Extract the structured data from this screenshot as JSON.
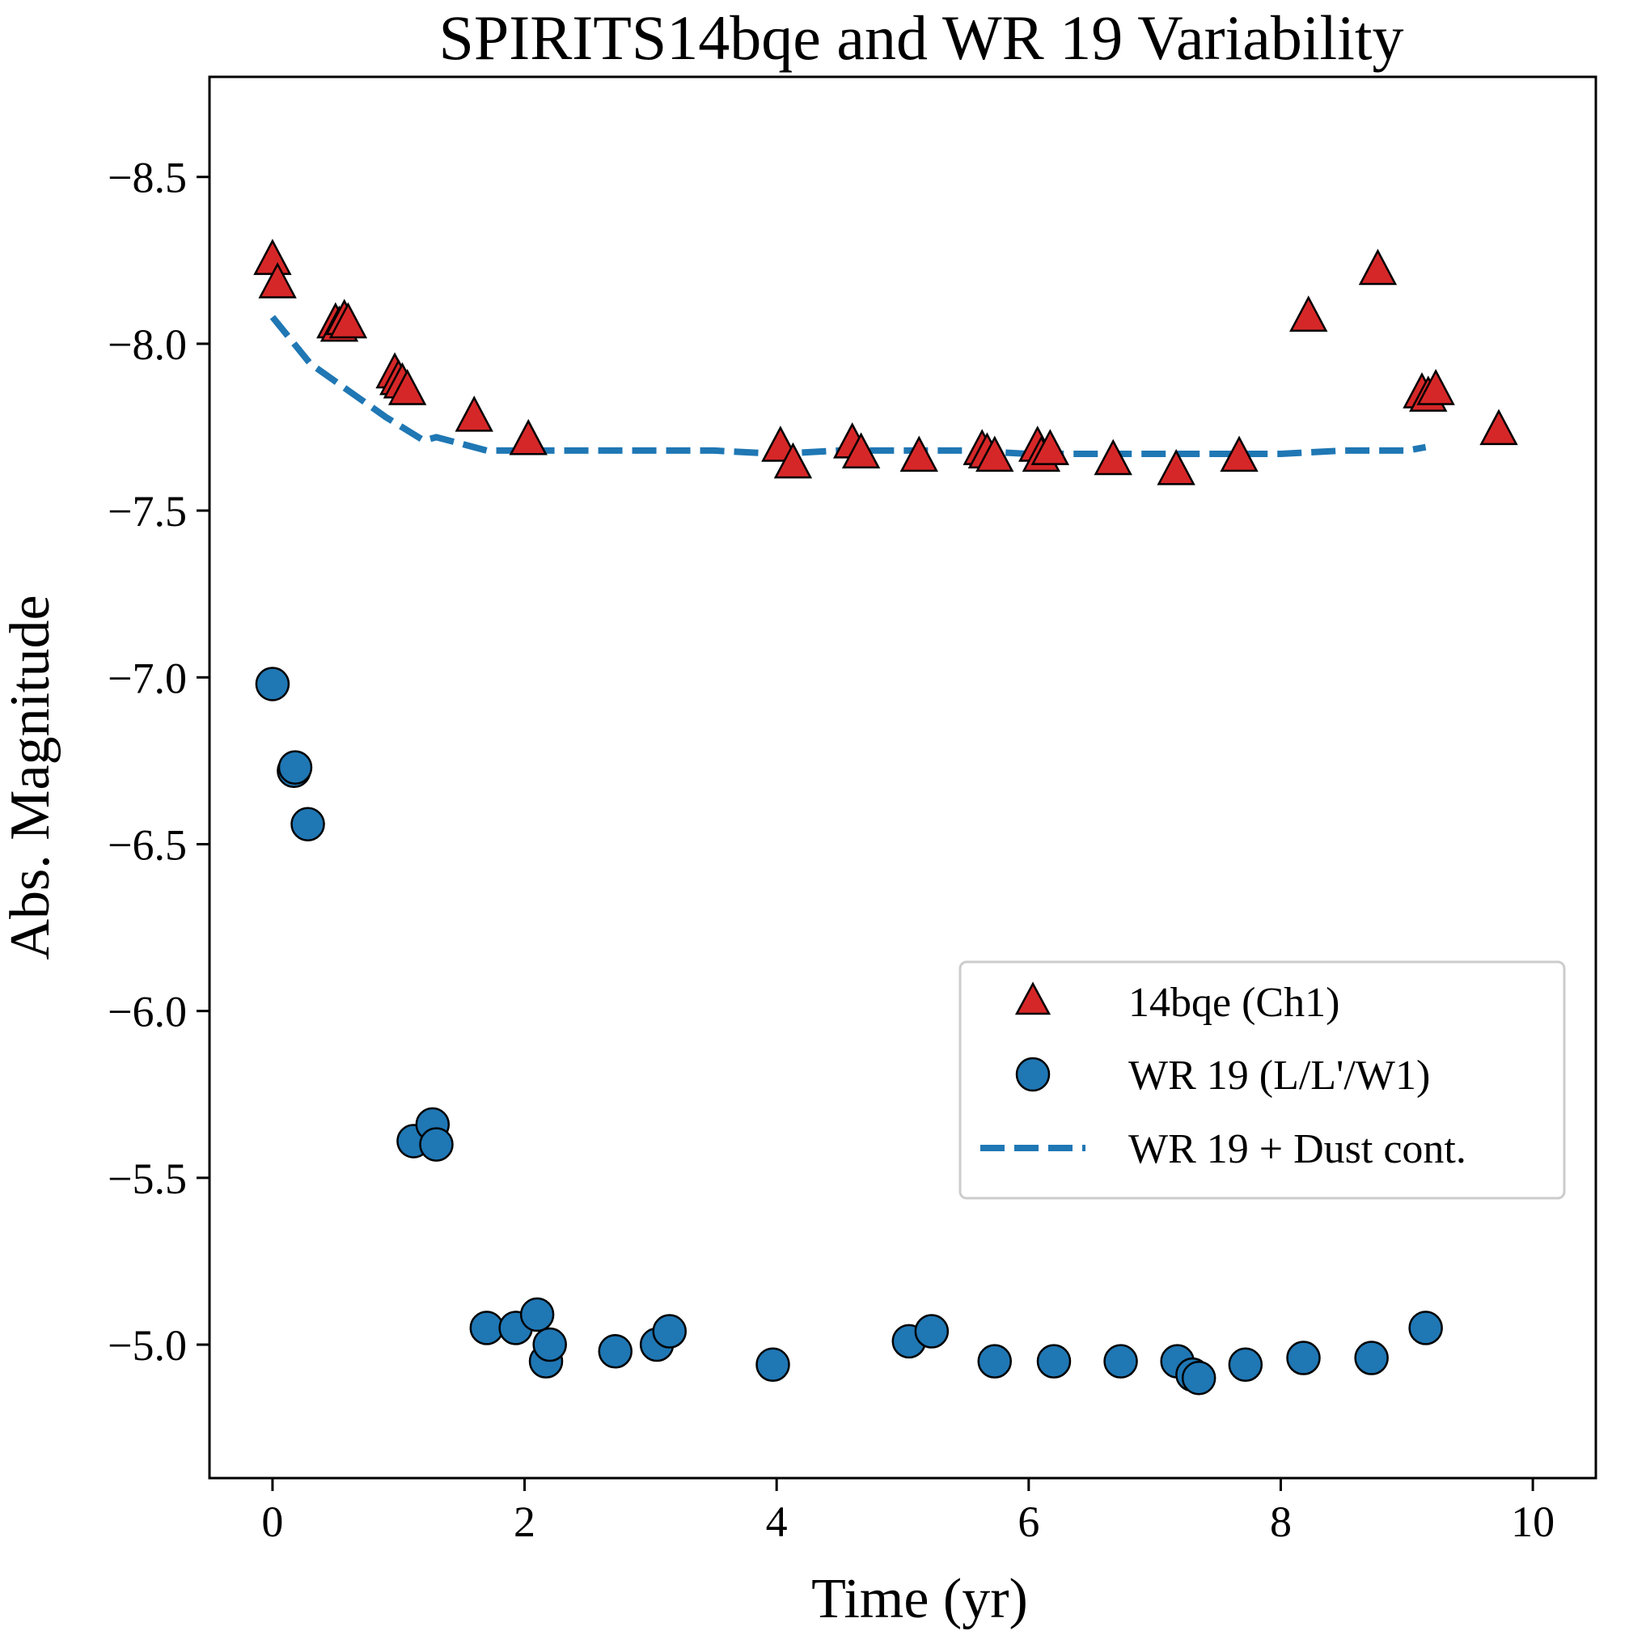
{
  "chart_data": {
    "type": "scatter",
    "title": "SPIRITS14bqe and WR 19 Variability",
    "xlabel": "Time (yr)",
    "ylabel": "Abs. Magnitude",
    "xlim": [
      -0.5,
      10.5
    ],
    "ylim": [
      -4.6,
      -8.8
    ],
    "y_axis_inverted": true,
    "x_ticks": [
      0,
      2,
      4,
      6,
      8,
      10
    ],
    "x_tick_labels": [
      "0",
      "2",
      "4",
      "6",
      "8",
      "10"
    ],
    "y_ticks": [
      -8.5,
      -8.0,
      -7.5,
      -7.0,
      -6.5,
      -6.0,
      -5.5,
      -5.0
    ],
    "y_tick_labels": [
      "−8.5",
      "−8.0",
      "−7.5",
      "−7.0",
      "−6.5",
      "−6.0",
      "−5.5",
      "−5.0"
    ],
    "grid": false,
    "legend_position": "lower-right",
    "series": [
      {
        "name": "14bqe (Ch1)",
        "kind": "scatter",
        "marker": "triangle",
        "color": "#d62728",
        "points": [
          [
            0.0,
            -8.25
          ],
          [
            0.04,
            -8.18
          ],
          [
            0.5,
            -8.06
          ],
          [
            0.53,
            -8.05
          ],
          [
            0.57,
            -8.07
          ],
          [
            0.6,
            -8.06
          ],
          [
            0.97,
            -7.91
          ],
          [
            1.0,
            -7.89
          ],
          [
            1.03,
            -7.88
          ],
          [
            1.07,
            -7.86
          ],
          [
            1.6,
            -7.78
          ],
          [
            2.03,
            -7.71
          ],
          [
            4.03,
            -7.69
          ],
          [
            4.13,
            -7.64
          ],
          [
            4.6,
            -7.7
          ],
          [
            4.67,
            -7.67
          ],
          [
            5.13,
            -7.66
          ],
          [
            5.63,
            -7.68
          ],
          [
            5.67,
            -7.67
          ],
          [
            5.73,
            -7.66
          ],
          [
            6.07,
            -7.69
          ],
          [
            6.1,
            -7.66
          ],
          [
            6.17,
            -7.68
          ],
          [
            6.67,
            -7.65
          ],
          [
            7.17,
            -7.62
          ],
          [
            7.67,
            -7.66
          ],
          [
            8.22,
            -8.08
          ],
          [
            8.77,
            -8.22
          ],
          [
            9.12,
            -7.85
          ],
          [
            9.17,
            -7.84
          ],
          [
            9.23,
            -7.86
          ],
          [
            9.73,
            -7.74
          ]
        ]
      },
      {
        "name": "WR 19 (L/L'/W1)",
        "kind": "scatter",
        "marker": "circle",
        "color": "#1f77b4",
        "points": [
          [
            0.0,
            -6.98
          ],
          [
            0.17,
            -6.72
          ],
          [
            0.18,
            -6.73
          ],
          [
            0.28,
            -6.56
          ],
          [
            1.12,
            -5.61
          ],
          [
            1.27,
            -5.66
          ],
          [
            1.3,
            -5.6
          ],
          [
            1.7,
            -5.05
          ],
          [
            1.93,
            -5.05
          ],
          [
            2.1,
            -5.09
          ],
          [
            2.17,
            -4.95
          ],
          [
            2.2,
            -5.0
          ],
          [
            2.72,
            -4.98
          ],
          [
            3.05,
            -5.0
          ],
          [
            3.15,
            -5.04
          ],
          [
            3.97,
            -4.94
          ],
          [
            5.05,
            -5.01
          ],
          [
            5.23,
            -5.04
          ],
          [
            5.73,
            -4.95
          ],
          [
            6.2,
            -4.95
          ],
          [
            6.73,
            -4.95
          ],
          [
            7.18,
            -4.95
          ],
          [
            7.3,
            -4.91
          ],
          [
            7.35,
            -4.9
          ],
          [
            7.72,
            -4.94
          ],
          [
            8.18,
            -4.96
          ],
          [
            8.72,
            -4.96
          ],
          [
            9.15,
            -5.05
          ]
        ]
      },
      {
        "name": "WR 19 + Dust cont.",
        "kind": "line",
        "dash": "dashed",
        "color": "#1f77b4",
        "points": [
          [
            0.0,
            -8.08
          ],
          [
            0.3,
            -7.94
          ],
          [
            0.6,
            -7.86
          ],
          [
            0.9,
            -7.78
          ],
          [
            1.2,
            -7.71
          ],
          [
            1.3,
            -7.72
          ],
          [
            1.5,
            -7.7
          ],
          [
            1.7,
            -7.68
          ],
          [
            2.0,
            -7.68
          ],
          [
            2.5,
            -7.68
          ],
          [
            3.0,
            -7.68
          ],
          [
            3.5,
            -7.68
          ],
          [
            4.0,
            -7.67
          ],
          [
            4.5,
            -7.68
          ],
          [
            5.0,
            -7.68
          ],
          [
            5.5,
            -7.68
          ],
          [
            6.0,
            -7.67
          ],
          [
            6.5,
            -7.67
          ],
          [
            7.0,
            -7.67
          ],
          [
            7.5,
            -7.67
          ],
          [
            8.0,
            -7.67
          ],
          [
            8.5,
            -7.68
          ],
          [
            9.0,
            -7.68
          ],
          [
            9.15,
            -7.69
          ]
        ]
      }
    ]
  }
}
